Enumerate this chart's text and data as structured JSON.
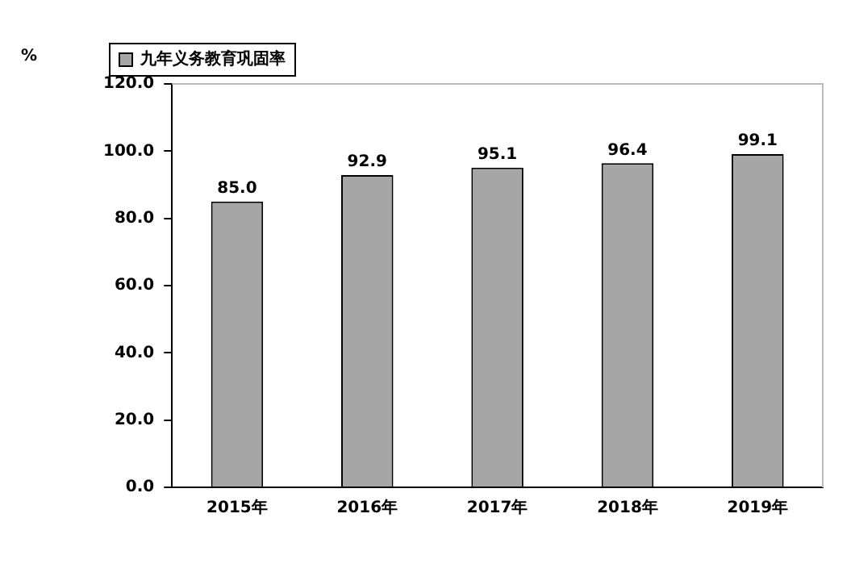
{
  "chart_data": {
    "type": "bar",
    "ylabel": "%",
    "categories": [
      "2015年",
      "2016年",
      "2017年",
      "2018年",
      "2019年"
    ],
    "series": [
      {
        "name": "九年义务教育巩固率",
        "color": "#a6a6a6",
        "values": [
          85.0,
          92.9,
          95.1,
          96.4,
          99.1
        ]
      }
    ],
    "ylim": [
      0,
      120
    ],
    "yticks": [
      {
        "value": 0,
        "label": "0.0"
      },
      {
        "value": 20,
        "label": "20.0"
      },
      {
        "value": 40,
        "label": "40.0"
      },
      {
        "value": 60,
        "label": "60.0"
      },
      {
        "value": 80,
        "label": "80.0"
      },
      {
        "value": 100,
        "label": "100.0"
      },
      {
        "value": 120,
        "label": "120.0"
      }
    ],
    "value_labels": [
      "85.0",
      "92.9",
      "95.1",
      "96.4",
      "99.1"
    ],
    "grid": false,
    "legend": "top left"
  }
}
